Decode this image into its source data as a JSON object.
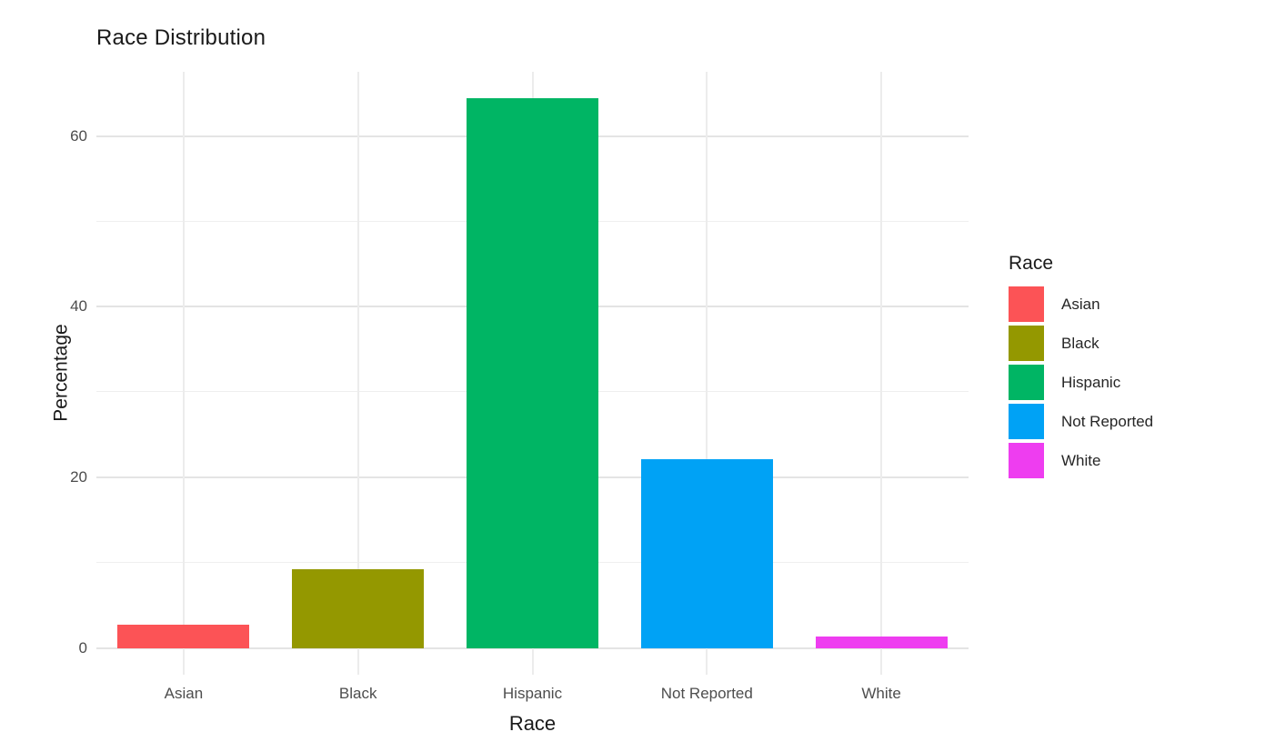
{
  "chart_data": {
    "type": "bar",
    "title": "Race Distribution",
    "xlabel": "Race",
    "ylabel": "Percentage",
    "legend_title": "Race",
    "legend_position": "right",
    "categories": [
      "Asian",
      "Black",
      "Hispanic",
      "Not Reported",
      "White"
    ],
    "values": [
      2.8,
      9.3,
      64.4,
      22.1,
      1.4
    ],
    "colors": [
      "#FC5356",
      "#949800",
      "#00B564",
      "#00A2F5",
      "#EE3DF0"
    ],
    "y_ticks": [
      0,
      20,
      40,
      60
    ],
    "y_minor_ticks": [
      10,
      30,
      50
    ],
    "ylim": [
      0,
      67.5
    ],
    "grid": true,
    "background": "#FFFFFF",
    "major_grid_color": "#E4E4E4",
    "minor_grid_color": "#EFEFEF",
    "vertical_grid_color": "#ECECEC",
    "tick_label_color": "#4D4D4D"
  }
}
